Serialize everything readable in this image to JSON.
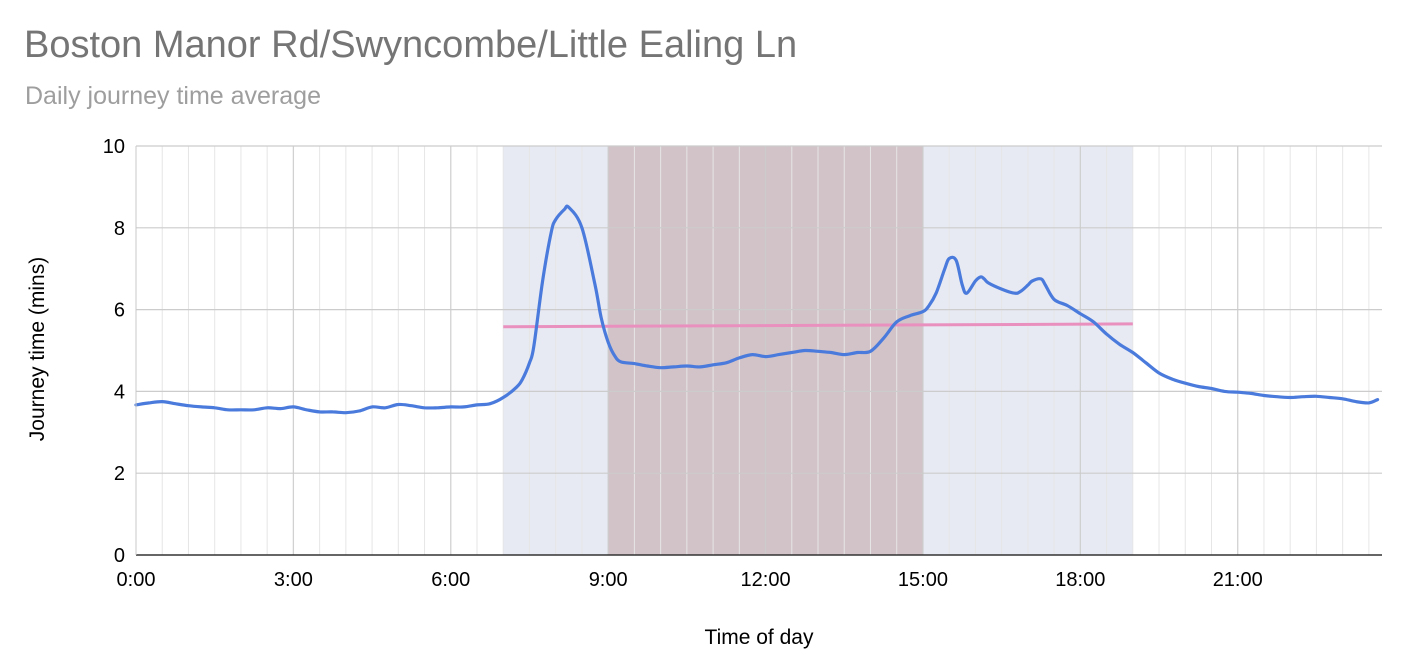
{
  "title": "Boston Manor Rd/Swyncombe/Little Ealing Ln",
  "subtitle": "Daily journey time average",
  "colors": {
    "line": "#4a7bdc",
    "average_line": "#e990bf",
    "peak_band": "#e8eaf3",
    "offpeak_band": "#d2c3c8",
    "gridline": "#cccccc",
    "minor_gridline": "#e6e6e6",
    "title": "#757575",
    "subtitle": "#9e9e9e"
  },
  "chart_data": {
    "type": "line",
    "title": "Boston Manor Rd/Swyncombe/Little Ealing Ln",
    "subtitle": "Daily journey time average",
    "xlabel": "Time of day",
    "ylabel": "Journey time (mins)",
    "xlim": [
      0,
      1425
    ],
    "ylim": [
      0,
      10
    ],
    "x_unit": "minutes since 0:00",
    "x_ticks": [
      {
        "x": 0,
        "label": "0:00"
      },
      {
        "x": 180,
        "label": "3:00"
      },
      {
        "x": 360,
        "label": "6:00"
      },
      {
        "x": 540,
        "label": "9:00"
      },
      {
        "x": 720,
        "label": "12:00"
      },
      {
        "x": 900,
        "label": "15:00"
      },
      {
        "x": 1080,
        "label": "18:00"
      },
      {
        "x": 1260,
        "label": "21:00"
      }
    ],
    "y_ticks": [
      0,
      2,
      4,
      6,
      8,
      10
    ],
    "grid": true,
    "legend": "none",
    "shaded_ranges": [
      {
        "from": 420,
        "to": 540,
        "kind": "peak"
      },
      {
        "from": 540,
        "to": 900,
        "kind": "offpeak"
      },
      {
        "from": 900,
        "to": 1140,
        "kind": "peak"
      }
    ],
    "average_segment": {
      "x": [
        420,
        1140
      ],
      "y": [
        5.58,
        5.65
      ]
    },
    "series": [
      {
        "x": [
          0,
          15,
          30,
          45,
          60,
          75,
          90,
          105,
          120,
          135,
          150,
          165,
          180,
          195,
          210,
          225,
          240,
          255,
          270,
          285,
          300,
          315,
          330,
          345,
          360,
          375,
          390,
          405,
          420,
          435,
          442,
          450,
          455,
          465,
          475,
          480,
          490,
          495,
          510,
          525,
          532,
          540,
          548,
          555,
          570,
          585,
          600,
          615,
          630,
          645,
          660,
          675,
          690,
          705,
          720,
          735,
          750,
          765,
          780,
          795,
          810,
          825,
          840,
          855,
          870,
          885,
          900,
          907,
          915,
          925,
          930,
          938,
          945,
          950,
          960,
          966,
          970,
          975,
          990,
          1005,
          1012,
          1020,
          1025,
          1035,
          1040,
          1050,
          1065,
          1080,
          1095,
          1110,
          1125,
          1140,
          1155,
          1170,
          1185,
          1200,
          1215,
          1230,
          1245,
          1260,
          1275,
          1290,
          1305,
          1320,
          1335,
          1350,
          1365,
          1380,
          1395,
          1410,
          1420
        ],
        "y": [
          3.67,
          3.72,
          3.75,
          3.7,
          3.65,
          3.62,
          3.6,
          3.55,
          3.55,
          3.55,
          3.6,
          3.58,
          3.62,
          3.55,
          3.5,
          3.5,
          3.48,
          3.52,
          3.62,
          3.6,
          3.68,
          3.65,
          3.6,
          3.6,
          3.62,
          3.62,
          3.67,
          3.7,
          3.85,
          4.1,
          4.3,
          4.7,
          5.1,
          6.7,
          7.9,
          8.2,
          8.45,
          8.5,
          8.0,
          6.6,
          5.8,
          5.2,
          4.85,
          4.72,
          4.68,
          4.62,
          4.58,
          4.6,
          4.62,
          4.6,
          4.65,
          4.7,
          4.82,
          4.9,
          4.85,
          4.9,
          4.95,
          5.0,
          4.98,
          4.95,
          4.9,
          4.95,
          4.98,
          5.3,
          5.7,
          5.85,
          5.95,
          6.1,
          6.4,
          7.0,
          7.25,
          7.2,
          6.6,
          6.4,
          6.7,
          6.8,
          6.75,
          6.65,
          6.5,
          6.4,
          6.45,
          6.6,
          6.7,
          6.75,
          6.6,
          6.25,
          6.1,
          5.9,
          5.7,
          5.4,
          5.15,
          4.95,
          4.7,
          4.45,
          4.3,
          4.2,
          4.12,
          4.07,
          4.0,
          3.98,
          3.95,
          3.9,
          3.87,
          3.85,
          3.87,
          3.88,
          3.85,
          3.82,
          3.75,
          3.72,
          3.8
        ]
      }
    ]
  }
}
